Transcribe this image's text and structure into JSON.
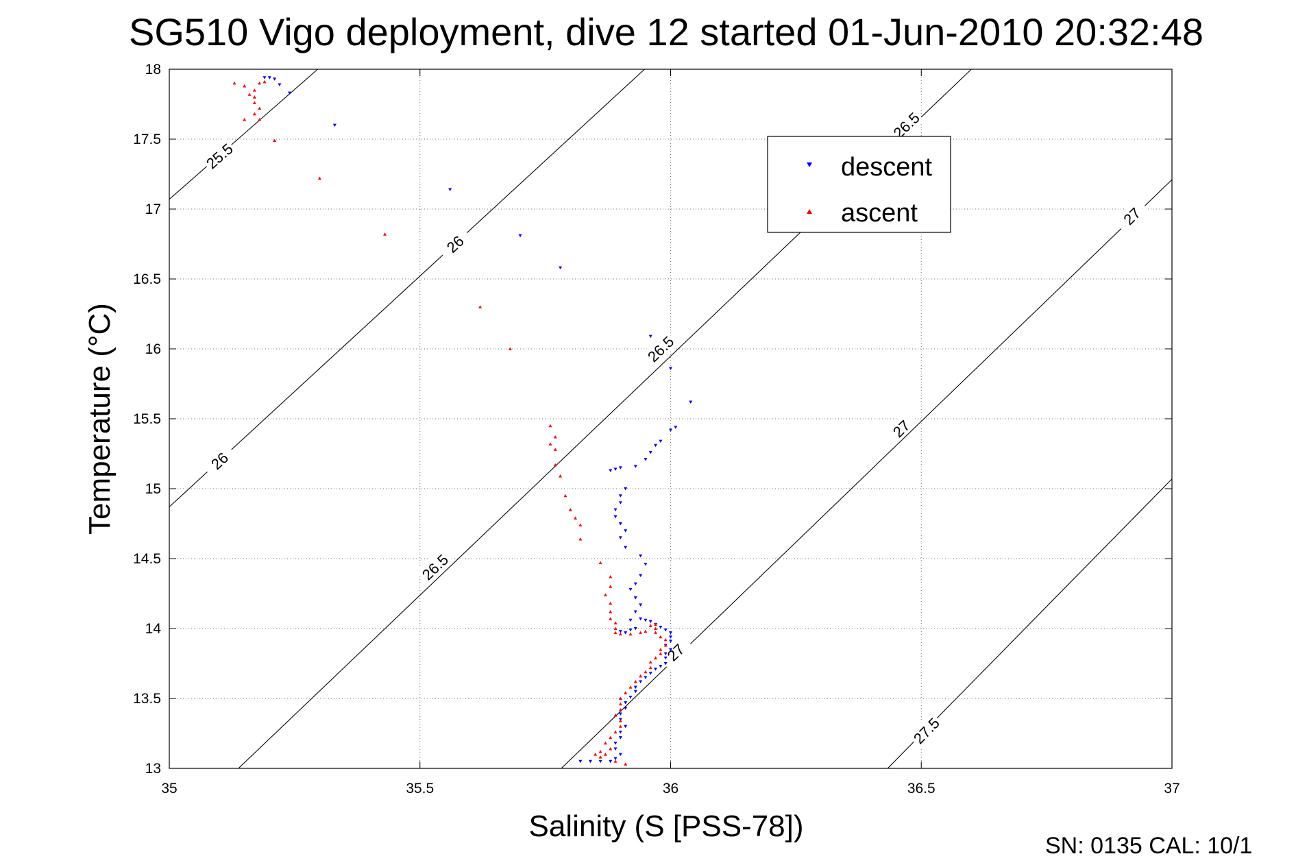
{
  "chart_data": {
    "type": "scatter",
    "title": "SG510 Vigo deployment, dive 12 started 01-Jun-2010 20:32:48",
    "xlabel": "Salinity (S [PSS-78])",
    "ylabel": "Temperature (°C)",
    "xlim": [
      35,
      37
    ],
    "ylim": [
      13,
      18
    ],
    "xticks": [
      "35",
      "35.5",
      "36",
      "36.5",
      "37"
    ],
    "yticks": [
      "13",
      "13.5",
      "14",
      "14.5",
      "15",
      "15.5",
      "16",
      "16.5",
      "17",
      "17.5",
      "18"
    ],
    "grid": true,
    "legend": {
      "placement": "upper-center-right",
      "entries": [
        "descent",
        "ascent"
      ]
    },
    "footer": "SN: 0135  CAL: 10/1",
    "contours": [
      {
        "label": "25.5",
        "points": [
          [
            35.0,
            17.07
          ],
          [
            35.296,
            18.0
          ]
        ],
        "labels": [
          {
            "x": 35.1,
            "y": 17.38,
            "text": "25.5"
          }
        ]
      },
      {
        "label": "26",
        "points": [
          [
            35.0,
            14.87
          ],
          [
            35.948,
            18.0
          ]
        ],
        "labels": [
          {
            "x": 35.1,
            "y": 15.2,
            "text": "26"
          },
          {
            "x": 35.57,
            "y": 16.75,
            "text": "26"
          }
        ]
      },
      {
        "label": "26.5",
        "points": [
          [
            35.138,
            13.0
          ],
          [
            36.6,
            18.0
          ]
        ],
        "labels": [
          {
            "x": 35.53,
            "y": 14.44,
            "text": "26.5"
          },
          {
            "x": 35.98,
            "y": 16.0,
            "text": "26.5"
          },
          {
            "x": 36.47,
            "y": 17.6,
            "text": "26.5"
          }
        ]
      },
      {
        "label": "27",
        "points": [
          [
            35.782,
            13.0
          ],
          [
            37.0,
            17.21
          ]
        ],
        "labels": [
          {
            "x": 36.01,
            "y": 13.83,
            "text": "27"
          },
          {
            "x": 36.46,
            "y": 15.43,
            "text": "27"
          },
          {
            "x": 36.92,
            "y": 16.95,
            "text": "27"
          }
        ]
      },
      {
        "label": "27.5",
        "points": [
          [
            36.433,
            13.0
          ],
          [
            37.0,
            15.07
          ]
        ],
        "labels": [
          {
            "x": 36.51,
            "y": 13.27,
            "text": "27.5"
          }
        ]
      }
    ],
    "series": [
      {
        "name": "descent",
        "color": "#0000ff",
        "marker": "triangle-down",
        "points": [
          [
            35.19,
            17.94
          ],
          [
            35.2,
            17.94
          ],
          [
            35.21,
            17.93
          ],
          [
            35.22,
            17.89
          ],
          [
            35.24,
            17.83
          ],
          [
            35.33,
            17.6
          ],
          [
            35.56,
            17.14
          ],
          [
            35.7,
            16.81
          ],
          [
            35.78,
            16.58
          ],
          [
            35.96,
            16.09
          ],
          [
            36.0,
            15.86
          ],
          [
            36.04,
            15.62
          ],
          [
            36.01,
            15.44
          ],
          [
            36.0,
            15.42
          ],
          [
            35.98,
            15.34
          ],
          [
            35.97,
            15.31
          ],
          [
            35.96,
            15.26
          ],
          [
            35.95,
            15.21
          ],
          [
            35.93,
            15.16
          ],
          [
            35.9,
            15.15
          ],
          [
            35.89,
            15.14
          ],
          [
            35.88,
            15.13
          ],
          [
            35.91,
            15.0
          ],
          [
            35.9,
            14.95
          ],
          [
            35.9,
            14.9
          ],
          [
            35.89,
            14.85
          ],
          [
            35.89,
            14.8
          ],
          [
            35.9,
            14.75
          ],
          [
            35.91,
            14.7
          ],
          [
            35.9,
            14.65
          ],
          [
            35.91,
            14.58
          ],
          [
            35.94,
            14.52
          ],
          [
            35.95,
            14.46
          ],
          [
            35.94,
            14.38
          ],
          [
            35.93,
            14.32
          ],
          [
            35.92,
            14.28
          ],
          [
            35.93,
            14.22
          ],
          [
            35.94,
            14.17
          ],
          [
            35.93,
            14.12
          ],
          [
            35.92,
            14.06
          ],
          [
            35.94,
            14.07
          ],
          [
            35.95,
            14.06
          ],
          [
            35.96,
            14.05
          ],
          [
            35.97,
            14.03
          ],
          [
            35.98,
            14.01
          ],
          [
            35.99,
            13.99
          ],
          [
            36.0,
            13.97
          ],
          [
            36.0,
            13.94
          ],
          [
            36.0,
            13.91
          ],
          [
            35.99,
            13.88
          ],
          [
            36.0,
            13.85
          ],
          [
            35.99,
            13.82
          ],
          [
            35.99,
            13.79
          ],
          [
            35.99,
            13.75
          ],
          [
            35.98,
            13.73
          ],
          [
            35.97,
            13.71
          ],
          [
            35.96,
            13.68
          ],
          [
            35.95,
            13.65
          ],
          [
            35.94,
            13.62
          ],
          [
            35.93,
            13.58
          ],
          [
            35.93,
            13.55
          ],
          [
            35.92,
            13.51
          ],
          [
            35.91,
            13.47
          ],
          [
            35.91,
            13.43
          ],
          [
            35.9,
            13.39
          ],
          [
            35.9,
            13.35
          ],
          [
            35.91,
            13.3
          ],
          [
            35.9,
            13.26
          ],
          [
            35.9,
            13.22
          ],
          [
            35.89,
            13.18
          ],
          [
            35.89,
            13.14
          ],
          [
            35.9,
            13.1
          ],
          [
            35.89,
            13.07
          ],
          [
            35.88,
            13.05
          ],
          [
            35.86,
            13.05
          ],
          [
            35.84,
            13.05
          ],
          [
            35.82,
            13.05
          ],
          [
            35.9,
            13.98
          ],
          [
            35.92,
            13.99
          ],
          [
            35.93,
            14.0
          ],
          [
            35.91,
            13.97
          ]
        ]
      },
      {
        "name": "ascent",
        "color": "#ff0000",
        "marker": "triangle-up",
        "points": [
          [
            35.13,
            17.9
          ],
          [
            35.15,
            17.88
          ],
          [
            35.16,
            17.82
          ],
          [
            35.17,
            17.76
          ],
          [
            35.18,
            17.72
          ],
          [
            35.17,
            17.68
          ],
          [
            35.15,
            17.64
          ],
          [
            35.19,
            17.91
          ],
          [
            35.18,
            17.9
          ],
          [
            35.17,
            17.85
          ],
          [
            35.17,
            17.8
          ],
          [
            35.18,
            17.64
          ],
          [
            35.21,
            17.49
          ],
          [
            35.3,
            17.22
          ],
          [
            35.43,
            16.82
          ],
          [
            35.62,
            16.3
          ],
          [
            35.68,
            16.0
          ],
          [
            35.76,
            15.45
          ],
          [
            35.77,
            15.37
          ],
          [
            35.76,
            15.32
          ],
          [
            35.77,
            15.28
          ],
          [
            35.77,
            15.17
          ],
          [
            35.78,
            15.09
          ],
          [
            35.79,
            14.95
          ],
          [
            35.8,
            14.85
          ],
          [
            35.81,
            14.79
          ],
          [
            35.82,
            14.74
          ],
          [
            35.82,
            14.64
          ],
          [
            35.86,
            14.47
          ],
          [
            35.88,
            14.37
          ],
          [
            35.88,
            14.3
          ],
          [
            35.87,
            14.24
          ],
          [
            35.88,
            14.18
          ],
          [
            35.88,
            14.12
          ],
          [
            35.88,
            14.07
          ],
          [
            35.89,
            14.04
          ],
          [
            35.89,
            14.0
          ],
          [
            35.89,
            13.97
          ],
          [
            35.9,
            13.96
          ],
          [
            35.92,
            13.96
          ],
          [
            35.94,
            13.97
          ],
          [
            35.95,
            13.98
          ],
          [
            35.96,
            14.02
          ],
          [
            35.97,
            14.03
          ],
          [
            35.97,
            14.0
          ],
          [
            35.97,
            13.97
          ],
          [
            35.98,
            13.94
          ],
          [
            35.99,
            13.92
          ],
          [
            35.99,
            13.88
          ],
          [
            35.98,
            13.85
          ],
          [
            35.98,
            13.82
          ],
          [
            35.97,
            13.79
          ],
          [
            35.96,
            13.76
          ],
          [
            35.96,
            13.72
          ],
          [
            35.95,
            13.69
          ],
          [
            35.94,
            13.66
          ],
          [
            35.93,
            13.62
          ],
          [
            35.92,
            13.58
          ],
          [
            35.91,
            13.54
          ],
          [
            35.9,
            13.5
          ],
          [
            35.9,
            13.46
          ],
          [
            35.9,
            13.42
          ],
          [
            35.89,
            13.38
          ],
          [
            35.9,
            13.34
          ],
          [
            35.9,
            13.3
          ],
          [
            35.89,
            13.26
          ],
          [
            35.88,
            13.22
          ],
          [
            35.87,
            13.18
          ],
          [
            35.88,
            13.14
          ],
          [
            35.87,
            13.1
          ],
          [
            35.86,
            13.08
          ],
          [
            35.85,
            13.1
          ],
          [
            35.86,
            13.12
          ],
          [
            35.89,
            13.05
          ],
          [
            35.91,
            13.03
          ]
        ]
      }
    ]
  }
}
